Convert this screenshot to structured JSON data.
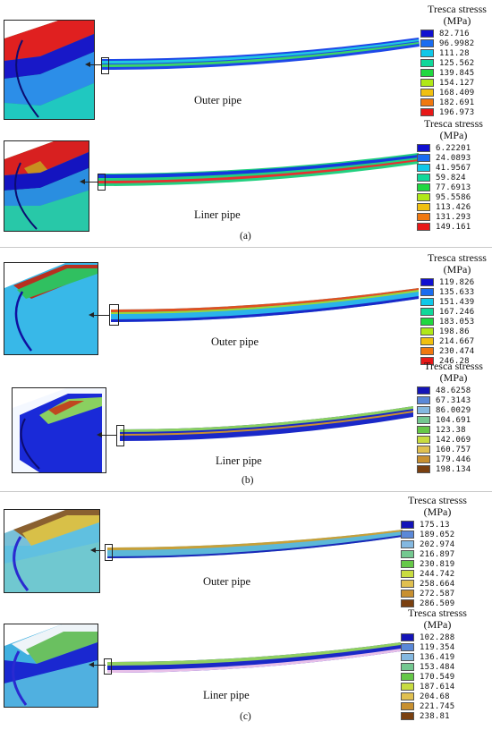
{
  "legend_title": "Tresca  stresss",
  "legend_unit": "(MPa)",
  "panels": [
    {
      "caption": "(a)",
      "outer": {
        "label": "Outer pipe",
        "values": [
          "82.716",
          "96.9982",
          "111.28",
          "125.562",
          "139.845",
          "154.127",
          "168.409",
          "182.691",
          "196.973"
        ],
        "colors": [
          "#1010d0",
          "#1a6cf0",
          "#10c8e8",
          "#10d89a",
          "#20d840",
          "#b0e818",
          "#f0c010",
          "#f07810",
          "#e81818"
        ]
      },
      "liner": {
        "label": "Liner pipe",
        "values": [
          "6.22201",
          "24.0893",
          "41.9567",
          "59.824",
          "77.6913",
          "95.5586",
          "113.426",
          "131.293",
          "149.161"
        ],
        "colors": [
          "#1010d0",
          "#1a6cf0",
          "#10c8e8",
          "#10d89a",
          "#20d840",
          "#b0e818",
          "#f0c010",
          "#f07810",
          "#e81818"
        ]
      }
    },
    {
      "caption": "(b)",
      "outer": {
        "label": "Outer pipe",
        "values": [
          "119.826",
          "135.633",
          "151.439",
          "167.246",
          "183.053",
          "198.86",
          "214.667",
          "230.474",
          "246.28"
        ],
        "colors": [
          "#1010d0",
          "#1a6cf0",
          "#10c8e8",
          "#10d89a",
          "#20d840",
          "#b0e818",
          "#f0c010",
          "#f07810",
          "#e81818"
        ]
      },
      "liner": {
        "label": "Liner pipe",
        "values": [
          "48.6258",
          "67.3143",
          "86.0029",
          "104.691",
          "123.38",
          "142.069",
          "160.757",
          "179.446",
          "198.134"
        ],
        "colors": [
          "#1414b8",
          "#5a88d8",
          "#84b8e0",
          "#74c890",
          "#66c848",
          "#c8dc40",
          "#e0c050",
          "#c89030",
          "#7a4010"
        ]
      }
    },
    {
      "caption": "(c)",
      "outer": {
        "label": "Outer pipe",
        "values": [
          "175.13",
          "189.052",
          "202.974",
          "216.897",
          "230.819",
          "244.742",
          "258.664",
          "272.587",
          "286.509"
        ],
        "colors": [
          "#1414b8",
          "#5a88d8",
          "#84b8e0",
          "#74c890",
          "#66c848",
          "#c8dc40",
          "#e0c050",
          "#c89030",
          "#7a4010"
        ]
      },
      "liner": {
        "label": "Liner pipe",
        "values": [
          "102.288",
          "119.354",
          "136.419",
          "153.484",
          "170.549",
          "187.614",
          "204.68",
          "221.745",
          "238.81"
        ],
        "colors": [
          "#1414b8",
          "#5a88d8",
          "#84b8e0",
          "#74c890",
          "#66c848",
          "#c8dc40",
          "#e0c050",
          "#c89030",
          "#7a4010"
        ]
      }
    }
  ]
}
